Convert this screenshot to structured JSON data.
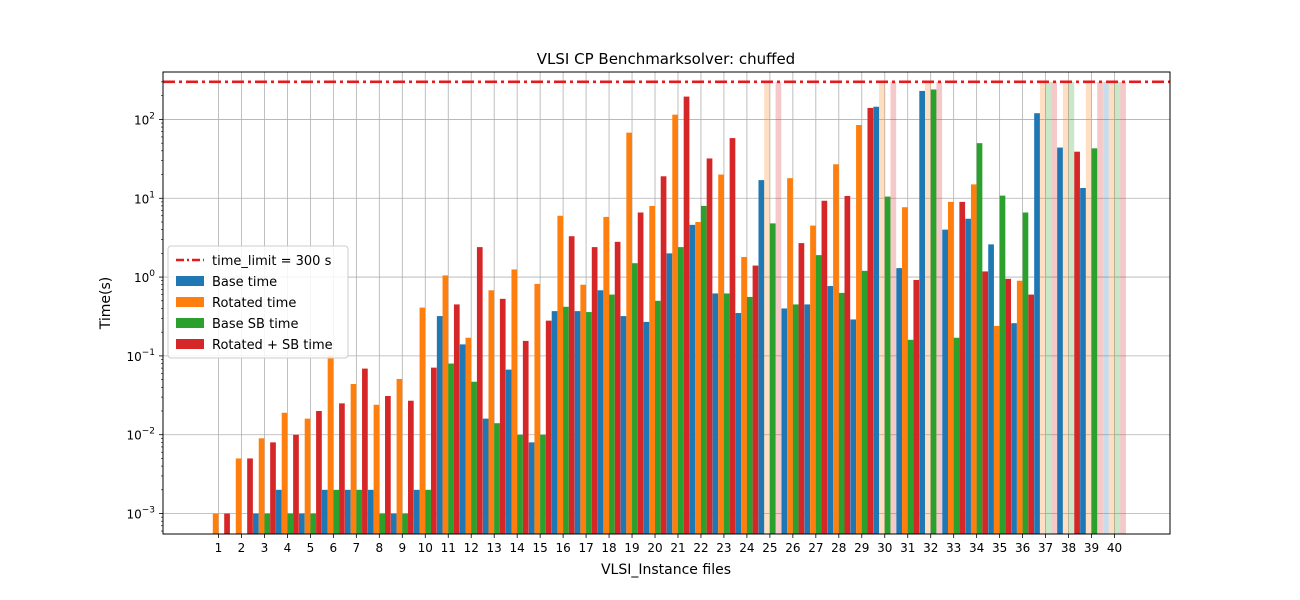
{
  "chart_data": {
    "type": "bar",
    "title": "VLSI CP Benchmarksolver: chuffed",
    "xlabel": "VLSI_Instance files",
    "ylabel": "Time(s)",
    "yscale": "log",
    "ylim": [
      0.00055,
      400
    ],
    "y_ticks": [
      {
        "value": 0.001,
        "base": "10",
        "exp": "−3"
      },
      {
        "value": 0.01,
        "base": "10",
        "exp": "−2"
      },
      {
        "value": 0.1,
        "base": "10",
        "exp": "−1"
      },
      {
        "value": 1,
        "base": "10",
        "exp": "0"
      },
      {
        "value": 10,
        "base": "10",
        "exp": "1"
      },
      {
        "value": 100,
        "base": "10",
        "exp": "2"
      }
    ],
    "grid": true,
    "legend_position": "center-left",
    "time_limit": {
      "label": "time_limit = 300 s",
      "value": 300,
      "color": "#e41a1c"
    },
    "categories": [
      "1",
      "2",
      "3",
      "4",
      "5",
      "6",
      "7",
      "8",
      "9",
      "10",
      "11",
      "12",
      "13",
      "14",
      "15",
      "16",
      "17",
      "18",
      "19",
      "20",
      "21",
      "22",
      "23",
      "24",
      "25",
      "26",
      "27",
      "28",
      "29",
      "30",
      "31",
      "32",
      "33",
      "34",
      "35",
      "36",
      "37",
      "38",
      "39",
      "40"
    ],
    "series": [
      {
        "name": "Base time",
        "color": "#1f77b4",
        "values": [
          0.0005,
          0.0005,
          0.001,
          0.002,
          0.001,
          0.002,
          0.002,
          0.002,
          0.001,
          0.002,
          0.32,
          0.14,
          0.016,
          0.067,
          0.008,
          0.37,
          0.37,
          0.68,
          0.32,
          0.27,
          2.0,
          4.6,
          0.62,
          0.35,
          17,
          0.4,
          0.45,
          0.77,
          0.29,
          145,
          1.3,
          230,
          4.0,
          5.5,
          2.6,
          0.26,
          120,
          44,
          13.5,
          300
        ],
        "timeout": [
          false,
          false,
          false,
          false,
          false,
          false,
          false,
          false,
          false,
          false,
          false,
          false,
          false,
          false,
          false,
          false,
          false,
          false,
          false,
          false,
          false,
          false,
          false,
          false,
          false,
          false,
          false,
          false,
          false,
          false,
          false,
          false,
          false,
          false,
          false,
          false,
          false,
          false,
          false,
          true
        ]
      },
      {
        "name": "Rotated time",
        "color": "#ff7f0e",
        "values": [
          0.001,
          0.005,
          0.009,
          0.019,
          0.016,
          0.1,
          0.044,
          0.024,
          0.051,
          0.41,
          1.05,
          0.17,
          0.68,
          1.25,
          0.82,
          6.0,
          0.8,
          5.8,
          68,
          8.0,
          115,
          5.0,
          20,
          1.8,
          300,
          18,
          4.5,
          27,
          85,
          300,
          7.7,
          300,
          9.0,
          15,
          0.24,
          0.9,
          300,
          300,
          300,
          300
        ],
        "timeout": [
          false,
          false,
          false,
          false,
          false,
          false,
          false,
          false,
          false,
          false,
          false,
          false,
          false,
          false,
          false,
          false,
          false,
          false,
          false,
          false,
          false,
          false,
          false,
          false,
          true,
          false,
          false,
          false,
          false,
          true,
          false,
          true,
          false,
          false,
          false,
          false,
          true,
          true,
          true,
          true
        ]
      },
      {
        "name": "Base SB time",
        "color": "#2ca02c",
        "values": [
          0.0005,
          0.0005,
          0.001,
          0.001,
          0.001,
          0.002,
          0.002,
          0.001,
          0.001,
          0.002,
          0.08,
          0.047,
          0.014,
          0.01,
          0.01,
          0.42,
          0.36,
          0.6,
          1.5,
          0.5,
          2.4,
          8.0,
          0.62,
          0.56,
          4.8,
          0.45,
          1.9,
          0.63,
          1.2,
          10.5,
          0.16,
          240,
          0.17,
          50,
          10.8,
          6.6,
          300,
          300,
          43,
          300
        ],
        "timeout": [
          false,
          false,
          false,
          false,
          false,
          false,
          false,
          false,
          false,
          false,
          false,
          false,
          false,
          false,
          false,
          false,
          false,
          false,
          false,
          false,
          false,
          false,
          false,
          false,
          false,
          false,
          false,
          false,
          false,
          false,
          false,
          false,
          false,
          false,
          false,
          false,
          true,
          true,
          false,
          true
        ]
      },
      {
        "name": "Rotated + SB time",
        "color": "#d62728",
        "values": [
          0.001,
          0.005,
          0.008,
          0.01,
          0.02,
          0.025,
          0.069,
          0.031,
          0.027,
          0.071,
          0.45,
          2.4,
          0.53,
          0.155,
          0.28,
          3.3,
          2.4,
          2.8,
          6.6,
          19,
          195,
          32,
          58,
          1.4,
          300,
          2.7,
          9.3,
          10.7,
          140,
          300,
          0.92,
          300,
          9.0,
          1.18,
          0.95,
          0.6,
          300,
          39,
          300,
          300
        ],
        "timeout": [
          false,
          false,
          false,
          false,
          false,
          false,
          false,
          false,
          false,
          false,
          false,
          false,
          false,
          false,
          false,
          false,
          false,
          false,
          false,
          false,
          false,
          false,
          false,
          false,
          true,
          false,
          false,
          false,
          false,
          true,
          false,
          true,
          false,
          false,
          false,
          false,
          true,
          false,
          true,
          true
        ]
      }
    ]
  }
}
